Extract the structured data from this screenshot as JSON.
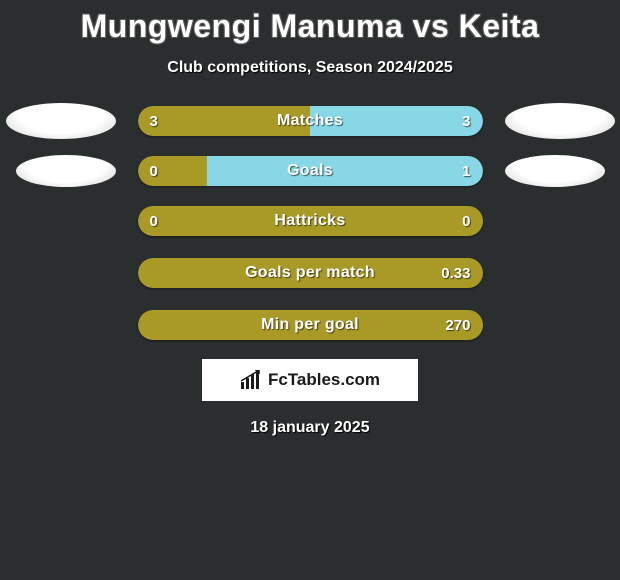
{
  "title": "Mungwengi Manuma vs Keita",
  "subtitle": "Club competitions, Season 2024/2025",
  "date": "18 january 2025",
  "colors": {
    "background": "#2a2e2f",
    "player1": "#a99a28",
    "player2": "#87d7e7",
    "text": "#ffffff"
  },
  "stats": [
    {
      "label": "Matches",
      "left_val": "3",
      "right_val": "3",
      "left_pct": 50,
      "right_pct": 50,
      "show_avatars": true,
      "avatar_size": "large"
    },
    {
      "label": "Goals",
      "left_val": "0",
      "right_val": "1",
      "left_pct": 20,
      "right_pct": 80,
      "show_avatars": true,
      "avatar_size": "small"
    },
    {
      "label": "Hattricks",
      "left_val": "0",
      "right_val": "0",
      "left_pct": 100,
      "right_pct": 0,
      "show_avatars": false
    },
    {
      "label": "Goals per match",
      "left_val": "",
      "right_val": "0.33",
      "left_pct": 100,
      "right_pct": 0,
      "show_avatars": false
    },
    {
      "label": "Min per goal",
      "left_val": "",
      "right_val": "270",
      "left_pct": 100,
      "right_pct": 0,
      "show_avatars": false
    }
  ],
  "branding": {
    "text": "FcTables.com",
    "icon": "barchart"
  }
}
